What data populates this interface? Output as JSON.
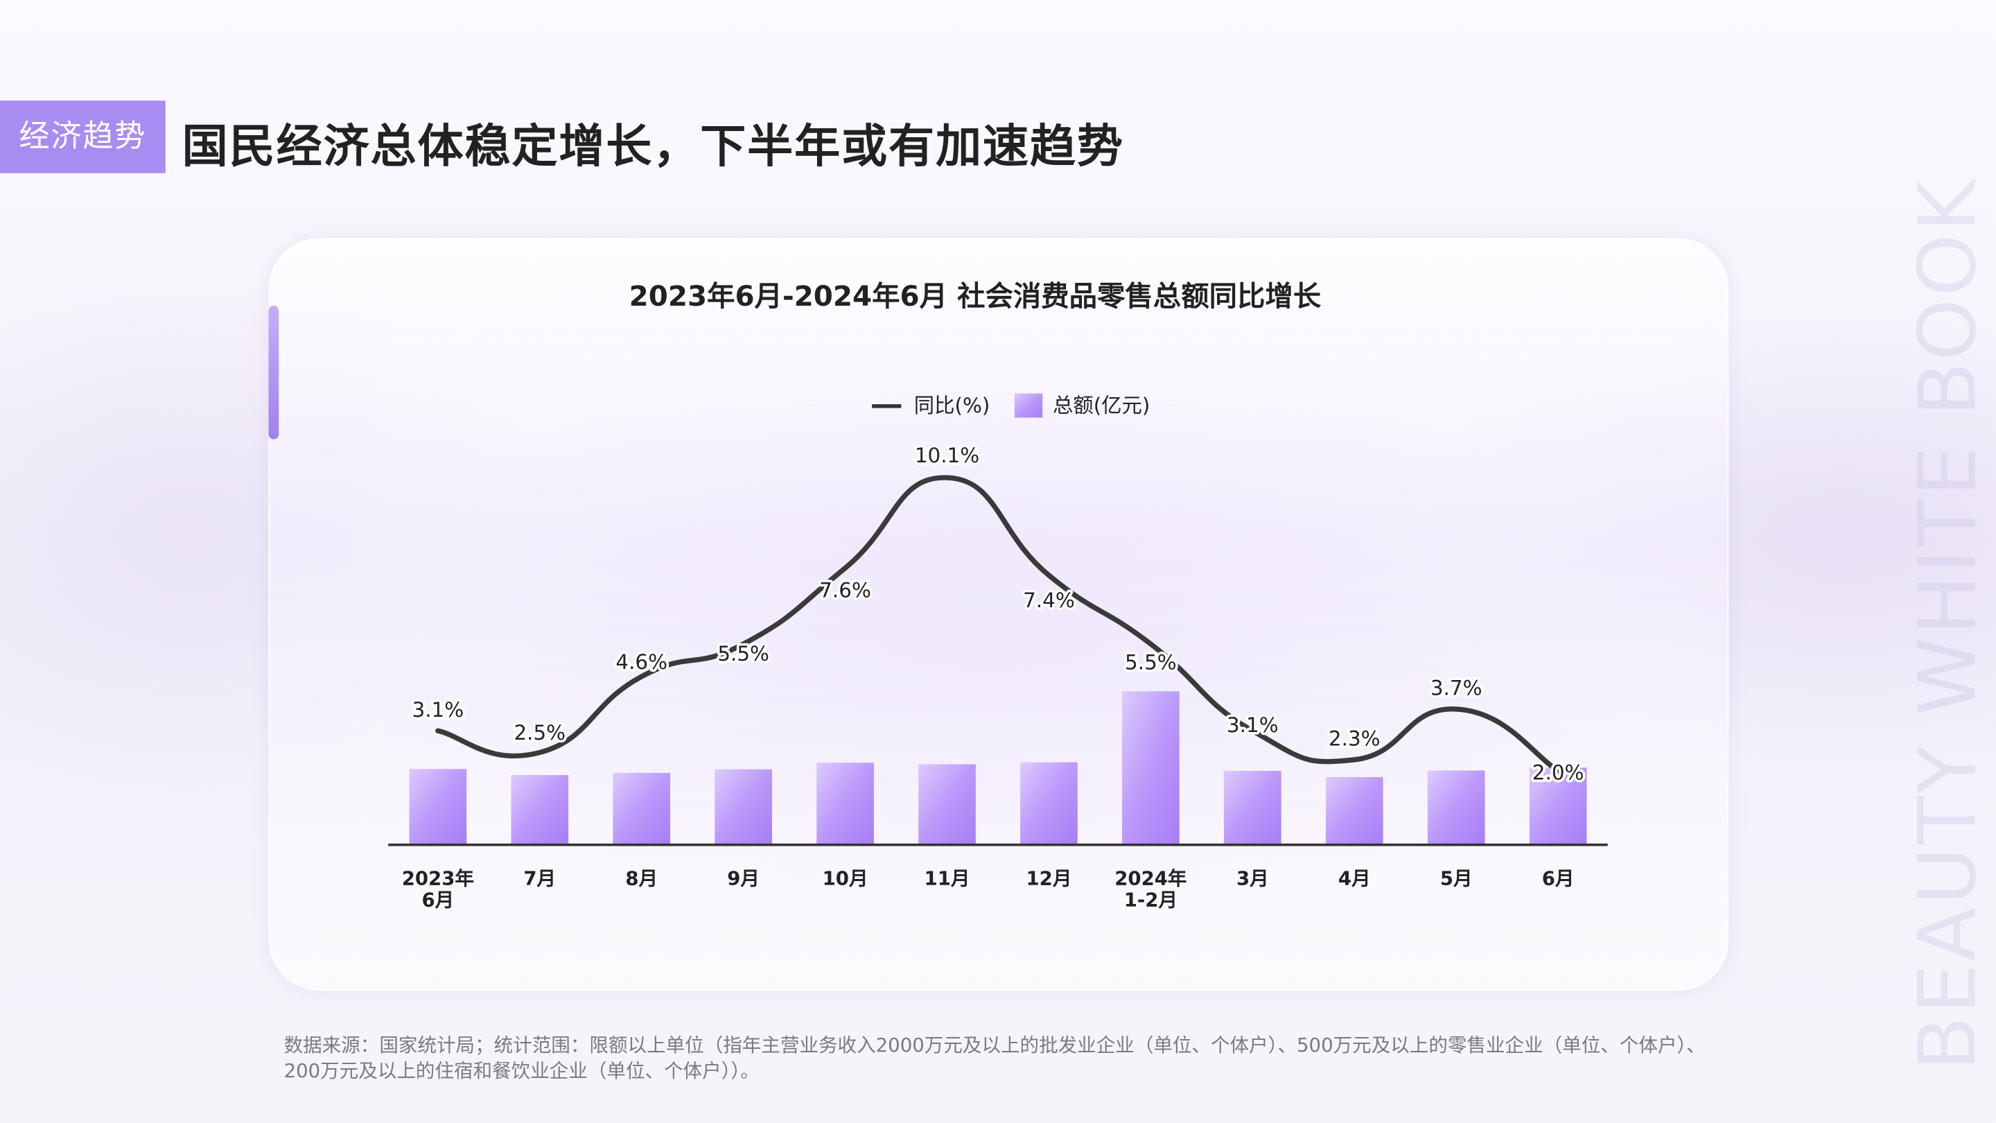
{
  "header": {
    "tag": "经济趋势",
    "title": "国民经济总体稳定增长，下半年或有加速趋势"
  },
  "watermark": "BEAUTY WHITE BOOK",
  "footnote": "数据来源：国家统计局；统计范围：限额以上单位（指年主营业务收入2000万元及以上的批发业企业（单位、个体户）、500万元及以上的零售业企业（单位、个体户）、200万元及以上的住宿和餐饮业企业（单位、个体户））。",
  "colors": {
    "accent": "#a98cf2",
    "bar": "#b592f8",
    "line": "#3a3a3a"
  },
  "chart_data": {
    "type": "bar+line",
    "title": "2023年6月-2024年6月 社会消费品零售总额同比增长",
    "legend": [
      "同比(%)",
      "总额(亿元)"
    ],
    "legend_position": "top-center",
    "categories": [
      [
        "2023年",
        "6月"
      ],
      [
        "7月"
      ],
      [
        "8月"
      ],
      [
        "9月"
      ],
      [
        "10月"
      ],
      [
        "11月"
      ],
      [
        "12月"
      ],
      [
        "2024年",
        "1-2月"
      ],
      [
        "3月"
      ],
      [
        "4月"
      ],
      [
        "5月"
      ],
      [
        "6月"
      ]
    ],
    "series": [
      {
        "name": "总额(亿元)",
        "type": "bar",
        "values": [
          39951,
          36761,
          37933,
          39826,
          43333,
          42505,
          43550,
          81307,
          39020,
          35699,
          39211,
          40732
        ],
        "estimated": true
      },
      {
        "name": "同比(%)",
        "type": "line",
        "values": [
          3.1,
          2.5,
          4.6,
          5.5,
          7.6,
          10.1,
          7.4,
          5.5,
          3.1,
          2.3,
          3.7,
          2.0
        ],
        "labels": [
          "3.1%",
          "2.5%",
          "4.6%",
          "5.5%",
          "7.6%",
          "10.1%",
          "7.4%",
          "5.5%",
          "3.1%",
          "2.3%",
          "3.7%",
          "2.0%"
        ]
      }
    ],
    "grid": false
  }
}
